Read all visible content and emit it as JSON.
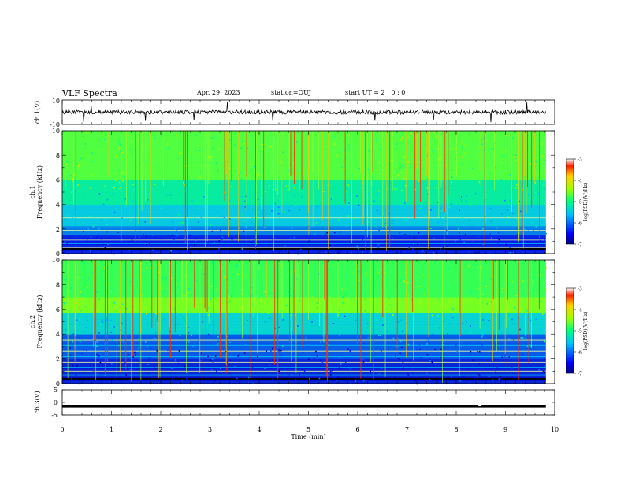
{
  "header": {
    "title": "VLF Spectra",
    "date": "Apr. 29, 2023",
    "station": "station=OUJ",
    "start": "start  UT =   2  : 0   : 0"
  },
  "chart_data": [
    {
      "type": "line",
      "panel": "ch1-waveform",
      "ylabel": "ch.1(V)",
      "ylim": [
        -10,
        10
      ],
      "yticks": [
        "10",
        "-10"
      ],
      "baseline": 0,
      "color": "#000000"
    },
    {
      "type": "heatmap",
      "panel": "ch1-spectrogram",
      "ylabel": "ch.1  Frequency (kHz)",
      "ylim": [
        0,
        10
      ],
      "yticks": [
        "0",
        "2",
        "4",
        "6",
        "8",
        "10"
      ],
      "colorbar": {
        "label": "log(PSD)(V²/Hz)",
        "range": [
          -7,
          -3
        ],
        "ticks": [
          "-3",
          "-4",
          "-5",
          "-6",
          "-7"
        ]
      }
    },
    {
      "type": "heatmap",
      "panel": "ch2-spectrogram",
      "ylabel": "ch.2  Frequency (kHz)",
      "ylim": [
        0,
        10
      ],
      "yticks": [
        "0",
        "2",
        "4",
        "6",
        "8",
        "10"
      ],
      "colorbar": {
        "label": "log(PSD)(V²/Hz)",
        "range": [
          -7,
          -3
        ],
        "ticks": [
          "-3",
          "-4",
          "-5",
          "-6",
          "-7"
        ]
      }
    },
    {
      "type": "line",
      "panel": "ch3-waveform",
      "ylabel": "ch.3(V)",
      "ylim": [
        -5,
        5
      ],
      "yticks": [
        "5",
        "0",
        "-5"
      ],
      "baseline": -1.5,
      "gap_at_min": 8.45
    }
  ],
  "xaxis": {
    "label": "Time  (min)",
    "xlim": [
      0,
      10
    ],
    "data_end": 9.82,
    "ticks": [
      "0",
      "1",
      "2",
      "3",
      "4",
      "5",
      "6",
      "7",
      "8",
      "9",
      "10"
    ]
  }
}
